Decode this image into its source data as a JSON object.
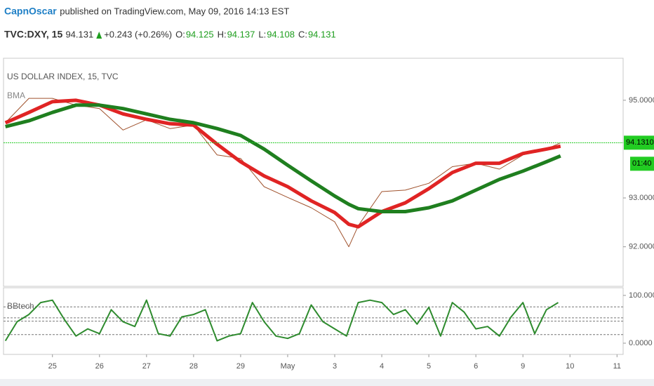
{
  "header": {
    "author": "CapnOscar",
    "published": "published on TradingView.com, May 09, 2016 14:13 EST"
  },
  "quote": {
    "symbol": "TVC:DXY, 15",
    "last": 94.131,
    "change": "+0.243 (+0.26%)",
    "open_label": "O:",
    "open": 94.125,
    "high_label": "H:",
    "high": 94.137,
    "low_label": "L:",
    "low": 94.108,
    "close_label": "C:",
    "close": 94.131
  },
  "chart_data": [
    {
      "type": "line",
      "title": "US DOLLAR INDEX, 15, TVC",
      "indicator": "BMA",
      "x": [
        -1,
        -0.5,
        0,
        0.5,
        1,
        1.5,
        2,
        2.5,
        3,
        3.5,
        4,
        4.5,
        5,
        5.5,
        6,
        6.3,
        6.5,
        7,
        7.5,
        8,
        8.5,
        9,
        9.5,
        10,
        10.5,
        10.8
      ],
      "series": [
        {
          "color": "#a0522d",
          "width": 1,
          "values": [
            94.54,
            95.04,
            95.04,
            94.9,
            94.83,
            94.39,
            94.6,
            94.42,
            94.49,
            93.88,
            93.81,
            93.23,
            93.01,
            92.8,
            92.51,
            92.0,
            92.43,
            93.13,
            93.16,
            93.3,
            93.64,
            93.71,
            93.59,
            93.88,
            94.0,
            94.13
          ]
        },
        {
          "color": "#e02424",
          "width": 5,
          "values": [
            94.54,
            94.75,
            94.97,
            95.0,
            94.9,
            94.72,
            94.61,
            94.52,
            94.49,
            94.1,
            93.74,
            93.45,
            93.23,
            92.94,
            92.7,
            92.46,
            92.41,
            92.72,
            92.9,
            93.19,
            93.52,
            93.71,
            93.71,
            93.91,
            94.0,
            94.06
          ]
        },
        {
          "color": "#1f7f1f",
          "width": 5,
          "values": [
            94.46,
            94.58,
            94.75,
            94.9,
            94.9,
            94.83,
            94.72,
            94.61,
            94.54,
            94.42,
            94.28,
            94.0,
            93.67,
            93.35,
            93.04,
            92.87,
            92.78,
            92.72,
            92.72,
            92.8,
            92.94,
            93.16,
            93.38,
            93.55,
            93.74,
            93.86
          ]
        }
      ],
      "xlim": [
        -1.04,
        12.13
      ],
      "ylim": [
        91.19,
        95.86
      ],
      "yticks": [
        {
          "value": 92,
          "label": "92.0000"
        },
        {
          "value": 93,
          "label": "93.0000"
        },
        {
          "value": 95,
          "label": "95.0000"
        }
      ],
      "last_price": {
        "value": 94.131,
        "label": "94.1310"
      },
      "countdown": "01:40"
    },
    {
      "type": "line",
      "title": "BBtech",
      "x": [
        -1,
        -0.75,
        -0.5,
        -0.25,
        0,
        0.25,
        0.5,
        0.75,
        1,
        1.25,
        1.5,
        1.75,
        2,
        2.25,
        2.5,
        2.75,
        3,
        3.25,
        3.5,
        3.75,
        4,
        4.25,
        4.5,
        4.75,
        5,
        5.25,
        5.5,
        5.75,
        6,
        6.25,
        6.5,
        6.75,
        7,
        7.25,
        7.5,
        7.75,
        8,
        8.25,
        8.5,
        8.75,
        9,
        9.25,
        9.5,
        9.75,
        10,
        10.25,
        10.5,
        10.75
      ],
      "series": [
        {
          "color": "#2e8b2e",
          "width": 2,
          "values": [
            5,
            45,
            60,
            85,
            90,
            50,
            15,
            30,
            20,
            70,
            45,
            35,
            90,
            20,
            15,
            55,
            60,
            70,
            5,
            15,
            20,
            85,
            45,
            15,
            10,
            20,
            80,
            45,
            30,
            15,
            85,
            90,
            85,
            60,
            70,
            40,
            75,
            15,
            85,
            65,
            30,
            35,
            15,
            55,
            85,
            20,
            70,
            85
          ]
        }
      ],
      "xlim": [
        -1.04,
        12.13
      ],
      "xticks": [
        {
          "value": 0,
          "label": "25"
        },
        {
          "value": 1,
          "label": "26"
        },
        {
          "value": 2,
          "label": "27"
        },
        {
          "value": 3,
          "label": "28"
        },
        {
          "value": 4,
          "label": "29"
        },
        {
          "value": 5,
          "label": "May"
        },
        {
          "value": 6,
          "label": "3"
        },
        {
          "value": 7,
          "label": "4"
        },
        {
          "value": 8,
          "label": "5"
        },
        {
          "value": 9,
          "label": "6"
        },
        {
          "value": 10,
          "label": "9"
        },
        {
          "value": 11,
          "label": "10"
        },
        {
          "value": 12,
          "label": "11"
        }
      ],
      "ylim": [
        -23.5,
        116
      ],
      "yticks": [
        {
          "value": 0,
          "label": "0.0000"
        },
        {
          "value": 100,
          "label": "100.0000"
        }
      ],
      "levels": [
        76,
        53,
        46,
        18
      ]
    }
  ]
}
